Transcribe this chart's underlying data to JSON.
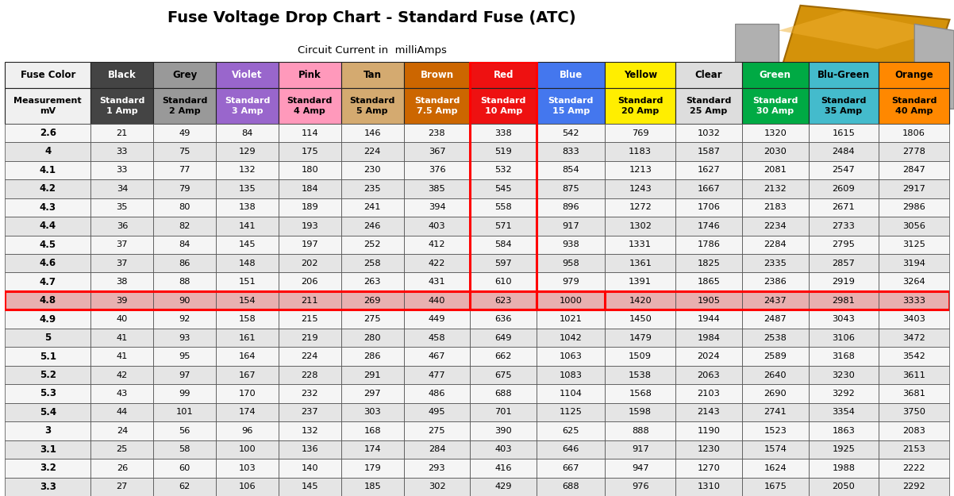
{
  "title": "Fuse Voltage Drop Chart - Standard Fuse (ATC)",
  "subtitle": "Circuit Current in  milliAmps",
  "header_row1": [
    "Fuse Color",
    "Black",
    "Grey",
    "Violet",
    "Pink",
    "Tan",
    "Brown",
    "Red",
    "Blue",
    "Yellow",
    "Clear",
    "Green",
    "Blu-Green",
    "Orange"
  ],
  "header_row2": [
    "Measurement\nmV",
    "Standard\n1 Amp",
    "Standard\n2 Amp",
    "Standard\n3 Amp",
    "Standard\n4 Amp",
    "Standard\n5 Amp",
    "Standard\n7.5 Amp",
    "Standard\n10 Amp",
    "Standard\n15 Amp",
    "Standard\n20 Amp",
    "Standard\n25 Amp",
    "Standard\n30 Amp",
    "Standard\n35 Amp",
    "Standard\n40 Amp"
  ],
  "col_colors": [
    "#f0f0f0",
    "#444444",
    "#999999",
    "#9966cc",
    "#ff99bb",
    "#d4aa70",
    "#cc6600",
    "#ee1111",
    "#4477ee",
    "#ffee00",
    "#dddddd",
    "#00aa44",
    "#44bbcc",
    "#ff8800"
  ],
  "col_text_colors": [
    "#000000",
    "#ffffff",
    "#000000",
    "#ffffff",
    "#000000",
    "#000000",
    "#ffffff",
    "#ffffff",
    "#ffffff",
    "#000000",
    "#000000",
    "#ffffff",
    "#000000",
    "#000000"
  ],
  "data_rows": [
    [
      "2.6",
      "21",
      "49",
      "84",
      "114",
      "146",
      "238",
      "338",
      "542",
      "769",
      "1032",
      "1320",
      "1615",
      "1806"
    ],
    [
      "4",
      "33",
      "75",
      "129",
      "175",
      "224",
      "367",
      "519",
      "833",
      "1183",
      "1587",
      "2030",
      "2484",
      "2778"
    ],
    [
      "4.1",
      "33",
      "77",
      "132",
      "180",
      "230",
      "376",
      "532",
      "854",
      "1213",
      "1627",
      "2081",
      "2547",
      "2847"
    ],
    [
      "4.2",
      "34",
      "79",
      "135",
      "184",
      "235",
      "385",
      "545",
      "875",
      "1243",
      "1667",
      "2132",
      "2609",
      "2917"
    ],
    [
      "4.3",
      "35",
      "80",
      "138",
      "189",
      "241",
      "394",
      "558",
      "896",
      "1272",
      "1706",
      "2183",
      "2671",
      "2986"
    ],
    [
      "4.4",
      "36",
      "82",
      "141",
      "193",
      "246",
      "403",
      "571",
      "917",
      "1302",
      "1746",
      "2234",
      "2733",
      "3056"
    ],
    [
      "4.5",
      "37",
      "84",
      "145",
      "197",
      "252",
      "412",
      "584",
      "938",
      "1331",
      "1786",
      "2284",
      "2795",
      "3125"
    ],
    [
      "4.6",
      "37",
      "86",
      "148",
      "202",
      "258",
      "422",
      "597",
      "958",
      "1361",
      "1825",
      "2335",
      "2857",
      "3194"
    ],
    [
      "4.7",
      "38",
      "88",
      "151",
      "206",
      "263",
      "431",
      "610",
      "979",
      "1391",
      "1865",
      "2386",
      "2919",
      "3264"
    ],
    [
      "4.8",
      "39",
      "90",
      "154",
      "211",
      "269",
      "440",
      "623",
      "1000",
      "1420",
      "1905",
      "2437",
      "2981",
      "3333"
    ],
    [
      "4.9",
      "40",
      "92",
      "158",
      "215",
      "275",
      "449",
      "636",
      "1021",
      "1450",
      "1944",
      "2487",
      "3043",
      "3403"
    ],
    [
      "5",
      "41",
      "93",
      "161",
      "219",
      "280",
      "458",
      "649",
      "1042",
      "1479",
      "1984",
      "2538",
      "3106",
      "3472"
    ],
    [
      "5.1",
      "41",
      "95",
      "164",
      "224",
      "286",
      "467",
      "662",
      "1063",
      "1509",
      "2024",
      "2589",
      "3168",
      "3542"
    ],
    [
      "5.2",
      "42",
      "97",
      "167",
      "228",
      "291",
      "477",
      "675",
      "1083",
      "1538",
      "2063",
      "2640",
      "3230",
      "3611"
    ],
    [
      "5.3",
      "43",
      "99",
      "170",
      "232",
      "297",
      "486",
      "688",
      "1104",
      "1568",
      "2103",
      "2690",
      "3292",
      "3681"
    ],
    [
      "5.4",
      "44",
      "101",
      "174",
      "237",
      "303",
      "495",
      "701",
      "1125",
      "1598",
      "2143",
      "2741",
      "3354",
      "3750"
    ],
    [
      "3",
      "24",
      "56",
      "96",
      "132",
      "168",
      "275",
      "390",
      "625",
      "888",
      "1190",
      "1523",
      "1863",
      "2083"
    ],
    [
      "3.1",
      "25",
      "58",
      "100",
      "136",
      "174",
      "284",
      "403",
      "646",
      "917",
      "1230",
      "1574",
      "1925",
      "2153"
    ],
    [
      "3.2",
      "26",
      "60",
      "103",
      "140",
      "179",
      "293",
      "416",
      "667",
      "947",
      "1270",
      "1624",
      "1988",
      "2222"
    ],
    [
      "3.3",
      "27",
      "62",
      "106",
      "145",
      "185",
      "302",
      "429",
      "688",
      "976",
      "1310",
      "1675",
      "2050",
      "2292"
    ]
  ],
  "highlight_row_idx": 9,
  "row_bg_even": "#f5f5f5",
  "row_bg_odd": "#e5e5e5",
  "highlight_row_bg": "#e8b0b0",
  "red_col_idx": 7,
  "blue_col_idx": 8
}
